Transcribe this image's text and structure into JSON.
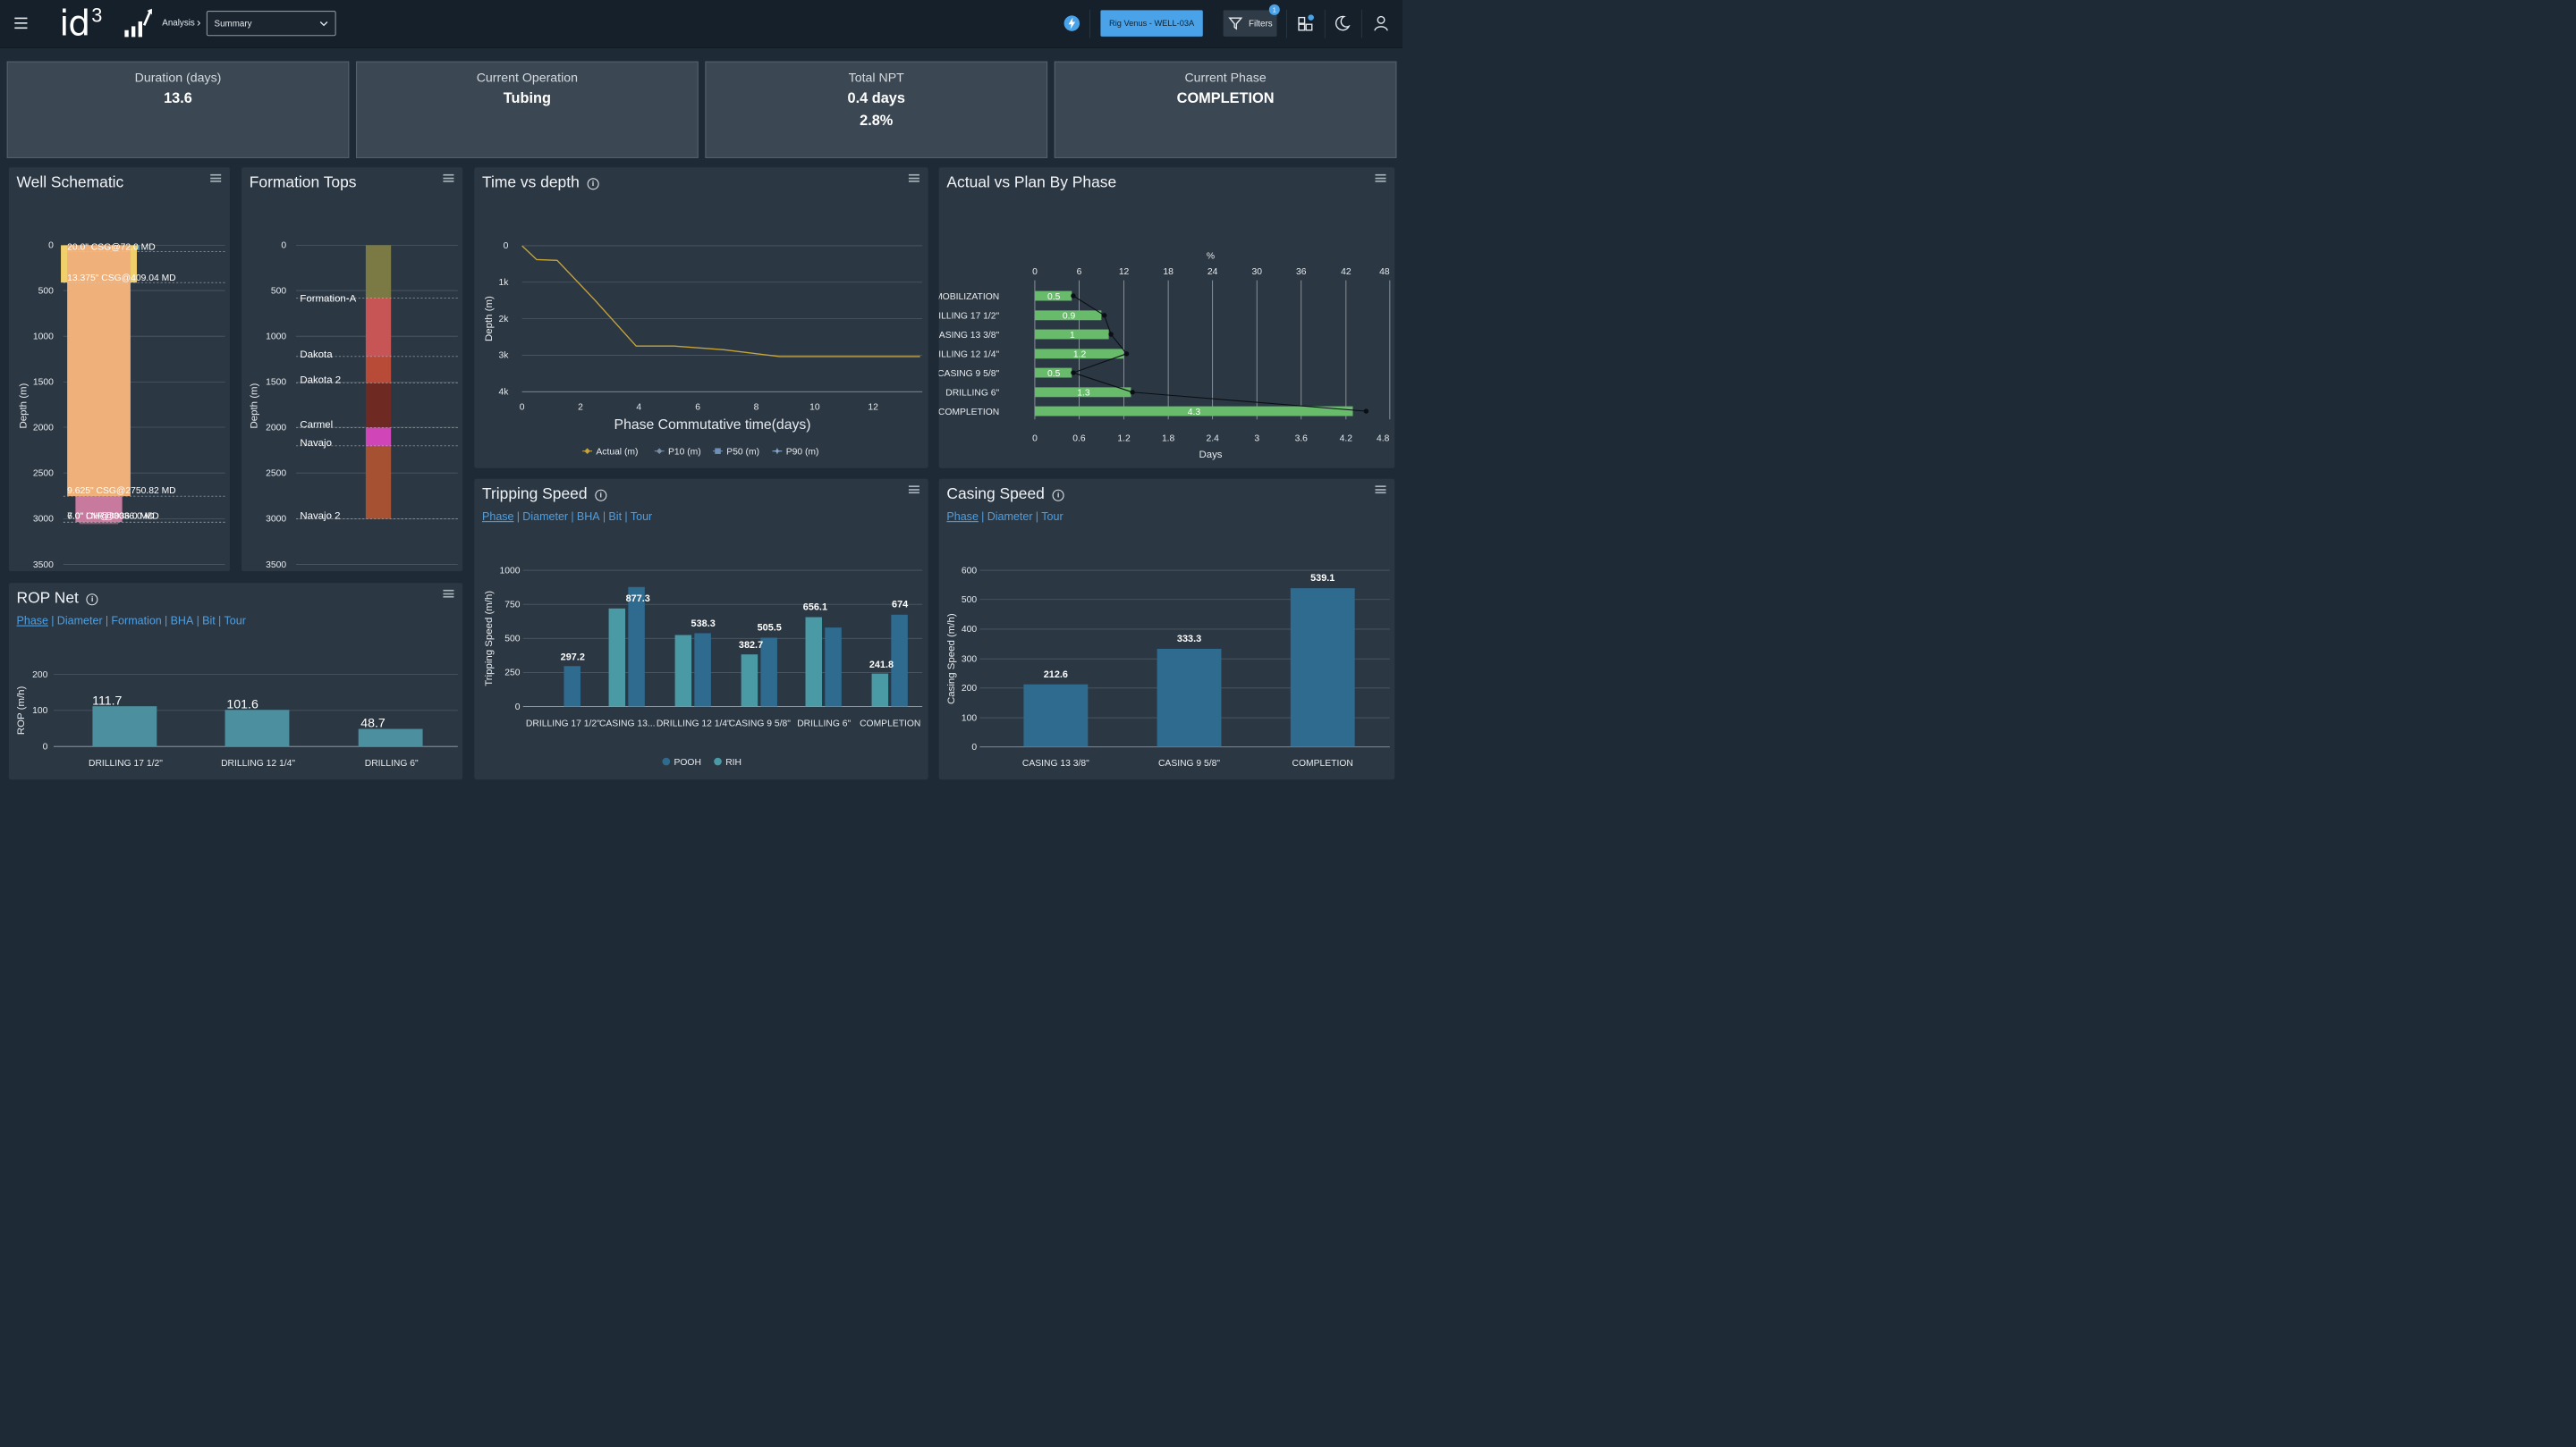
{
  "header": {
    "brand": "id",
    "brand_sup": "3",
    "breadcrumb": "Analysis",
    "view_select": "Summary",
    "rig_button": "Rig Venus - WELL-03A",
    "filters_label": "Filters",
    "filters_badge": "1",
    "colors": {
      "bar": "#15202b",
      "accent": "#4aa3e8"
    }
  },
  "kpis": [
    {
      "label": "Duration (days)",
      "value": "13.6"
    },
    {
      "label": "Current Operation",
      "value": "Tubing"
    },
    {
      "label": "Total NPT",
      "value": "0.4 days",
      "value2": "2.8%"
    },
    {
      "label": "Current Phase",
      "value": "COMPLETION"
    }
  ],
  "well_schematic": {
    "title": "Well Schematic",
    "ylabel": "Depth (m)",
    "y_ticks": [
      "0",
      "500",
      "1000",
      "1500",
      "2000",
      "2500",
      "3000",
      "3500"
    ],
    "casing_labels": [
      "20.0\" CSG@72.0 MD",
      "13.375\" CSG@409.04 MD",
      "9.625\" CSG@2750.82 MD",
      "7.0\" LNR@3036.0 MD",
      "6.0\" OH@3036.0 MD"
    ]
  },
  "formation_tops": {
    "title": "Formation Tops",
    "ylabel": "Depth (m)",
    "y_ticks": [
      "0",
      "500",
      "1000",
      "1500",
      "2000",
      "2500",
      "3000",
      "3500"
    ],
    "formations": [
      "Formation-A",
      "Dakota",
      "Dakota 2",
      "Carmel",
      "Navajo",
      "Navajo 2"
    ]
  },
  "time_vs_depth": {
    "title": "Time vs depth",
    "xlabel": "Phase Commutative time(days)",
    "ylabel": "Depth (m)",
    "x_ticks": [
      "0",
      "2",
      "4",
      "6",
      "8",
      "10",
      "12"
    ],
    "y_ticks": [
      "0",
      "1k",
      "2k",
      "3k",
      "4k"
    ],
    "legend": [
      "Actual (m)",
      "P10 (m)",
      "P50 (m)",
      "P90 (m)"
    ]
  },
  "actual_vs_plan": {
    "title": "Actual vs Plan By Phase",
    "top_axis_label": "%",
    "top_ticks": [
      "0",
      "6",
      "12",
      "18",
      "24",
      "30",
      "36",
      "42",
      "48"
    ],
    "bottom_ticks": [
      "0",
      "0.6",
      "1.2",
      "1.8",
      "2.4",
      "3",
      "3.6",
      "4.2",
      "4.8"
    ],
    "xlabel": "Days",
    "phases": [
      "MOBILIZATION",
      "DRILLING 17 1/2\"",
      "CASING 13 3/8\"",
      "DRILLING 12 1/4\"",
      "CASING 9 5/8\"",
      "DRILLING 6\"",
      "COMPLETION"
    ],
    "value_labels": [
      "0.5",
      "0.9",
      "1",
      "1.2",
      "0.5",
      "1.3",
      "4.3"
    ]
  },
  "rop_net": {
    "title": "ROP Net",
    "links": [
      "Phase",
      "Diameter",
      "Formation",
      "BHA",
      "Bit",
      "Tour"
    ],
    "ylabel": "ROP (m/h)",
    "y_ticks": [
      "0",
      "100",
      "200"
    ],
    "value_labels": [
      "111.7",
      "101.6",
      "48.7"
    ]
  },
  "tripping_speed": {
    "title": "Tripping Speed",
    "links": [
      "Phase",
      "Diameter",
      "BHA",
      "Bit",
      "Tour"
    ],
    "ylabel": "Tripping Speed (m/h)",
    "y_ticks": [
      "0",
      "250",
      "500",
      "750",
      "1000"
    ],
    "categories": [
      "DRILLING 17 1/2\"",
      "CASING 13...",
      "DRILLING 12 1/4\"",
      "CASING 9 5/8\"",
      "DRILLING 6\"",
      "COMPLETION"
    ],
    "value_labels": [
      "297.2",
      "877.3",
      "538.3",
      "505.5",
      "382.7",
      "656.1",
      "241.8",
      "674"
    ],
    "legend": [
      "POOH",
      "RIH"
    ]
  },
  "casing_speed": {
    "title": "Casing Speed",
    "links": [
      "Phase",
      "Diameter",
      "Tour"
    ],
    "ylabel": "Casing Speed (m/h)",
    "y_ticks": [
      "0",
      "100",
      "200",
      "300",
      "400",
      "500",
      "600"
    ],
    "value_labels": [
      "212.6",
      "333.3",
      "539.1"
    ]
  },
  "chart_data": [
    {
      "type": "bar",
      "title": "Well Schematic",
      "ylabel": "Depth (m)",
      "ylim": [
        3500,
        0
      ],
      "casings": [
        {
          "name": "20.0\" CSG",
          "od_in": 20.0,
          "top": 0,
          "bottom": 72.0
        },
        {
          "name": "13.375\" CSG",
          "od_in": 13.375,
          "top": 0,
          "bottom": 409.04
        },
        {
          "name": "9.625\" CSG",
          "od_in": 9.625,
          "top": 0,
          "bottom": 2750.82
        },
        {
          "name": "7.0\" LNR",
          "od_in": 7.0,
          "top": 2750.82,
          "bottom": 3036.0
        },
        {
          "name": "6.0\" OH",
          "od_in": 6.0,
          "top": 3036.0,
          "bottom": 3036.0
        }
      ]
    },
    {
      "type": "bar",
      "title": "Formation Tops",
      "ylabel": "Depth (m)",
      "ylim": [
        3500,
        0
      ],
      "intervals": [
        {
          "name": "",
          "top": 0,
          "bottom": 580,
          "color": "#7b7a45"
        },
        {
          "name": "Formation-A",
          "top": 580,
          "bottom": 1220,
          "color": "#c85555"
        },
        {
          "name": "Dakota",
          "top": 1220,
          "bottom": 1510,
          "color": "#b84a38"
        },
        {
          "name": "Dakota 2",
          "top": 1510,
          "bottom": 2000,
          "color": "#6e2a22"
        },
        {
          "name": "Carmel",
          "top": 2000,
          "bottom": 2200,
          "color": "#d046b8"
        },
        {
          "name": "Navajo",
          "top": 2200,
          "bottom": 3000,
          "color": "#a65232"
        },
        {
          "name": "Navajo 2",
          "top": 3000,
          "bottom": 3000,
          "color": "#a65232"
        }
      ]
    },
    {
      "type": "line",
      "title": "Time vs depth",
      "xlabel": "Phase Commutative time(days)",
      "ylabel": "Depth (m)",
      "xlim": [
        0,
        13.6
      ],
      "ylim": [
        4000,
        0
      ],
      "series": [
        {
          "name": "Actual (m)",
          "color": "#c6a43a",
          "x": [
            0,
            0.5,
            1.2,
            2.5,
            3.9,
            5.2,
            6.9,
            8.8,
            10.5,
            12.0,
            13.6
          ],
          "y": [
            0,
            380,
            400,
            1500,
            2750,
            2750,
            2850,
            3036,
            3036,
            3036,
            3036
          ]
        },
        {
          "name": "P10 (m)",
          "color": "#7a8ea3",
          "x": [],
          "y": []
        },
        {
          "name": "P50 (m)",
          "color": "#6e8fb6",
          "x": [],
          "y": []
        },
        {
          "name": "P90 (m)",
          "color": "#8aa6c8",
          "x": [],
          "y": []
        }
      ]
    },
    {
      "type": "bar",
      "title": "Actual vs Plan By Phase",
      "xlabel": "Days",
      "xlim": [
        0,
        4.8
      ],
      "top_xlim": [
        0,
        48
      ],
      "categories": [
        "MOBILIZATION",
        "DRILLING 17 1/2\"",
        "CASING 13 3/8\"",
        "DRILLING 12 1/4\"",
        "CASING 9 5/8\"",
        "DRILLING 6\"",
        "COMPLETION"
      ],
      "series": [
        {
          "name": "Days",
          "color": "#67bb6a",
          "values": [
            0.5,
            0.9,
            1.0,
            1.2,
            0.5,
            1.3,
            4.3
          ]
        },
        {
          "name": "%",
          "color": "#0b0f14",
          "values": [
            5.2,
            9.4,
            10.3,
            12.4,
            5.2,
            13.2,
            44.8
          ]
        }
      ]
    },
    {
      "type": "bar",
      "title": "ROP Net",
      "ylabel": "ROP (m/h)",
      "ylim": [
        0,
        240
      ],
      "categories": [
        "DRILLING 17 1/2\"",
        "DRILLING 12 1/4\"",
        "DRILLING 6\""
      ],
      "values": [
        111.7,
        101.6,
        48.7
      ]
    },
    {
      "type": "bar",
      "title": "Tripping Speed",
      "ylabel": "Tripping Speed (m/h)",
      "ylim": [
        0,
        1000
      ],
      "categories": [
        "DRILLING 17 1/2\"",
        "CASING 13...",
        "DRILLING 12 1/4\"",
        "CASING 9 5/8\"",
        "DRILLING 6\"",
        "COMPLETION"
      ],
      "series": [
        {
          "name": "POOH",
          "color": "#2f6b8f",
          "values": [
            null,
            720,
            525,
            382.7,
            656.1,
            241.8
          ]
        },
        {
          "name": "RIH",
          "color": "#4a9aa6",
          "values": [
            297.2,
            877.3,
            538.3,
            505.5,
            580,
            674
          ]
        }
      ]
    },
    {
      "type": "bar",
      "title": "Casing Speed",
      "ylabel": "Casing Speed (m/h)",
      "ylim": [
        0,
        600
      ],
      "categories": [
        "CASING 13 3/8\"",
        "CASING 9 5/8\"",
        "COMPLETION"
      ],
      "values": [
        212.6,
        333.3,
        539.1
      ]
    }
  ]
}
